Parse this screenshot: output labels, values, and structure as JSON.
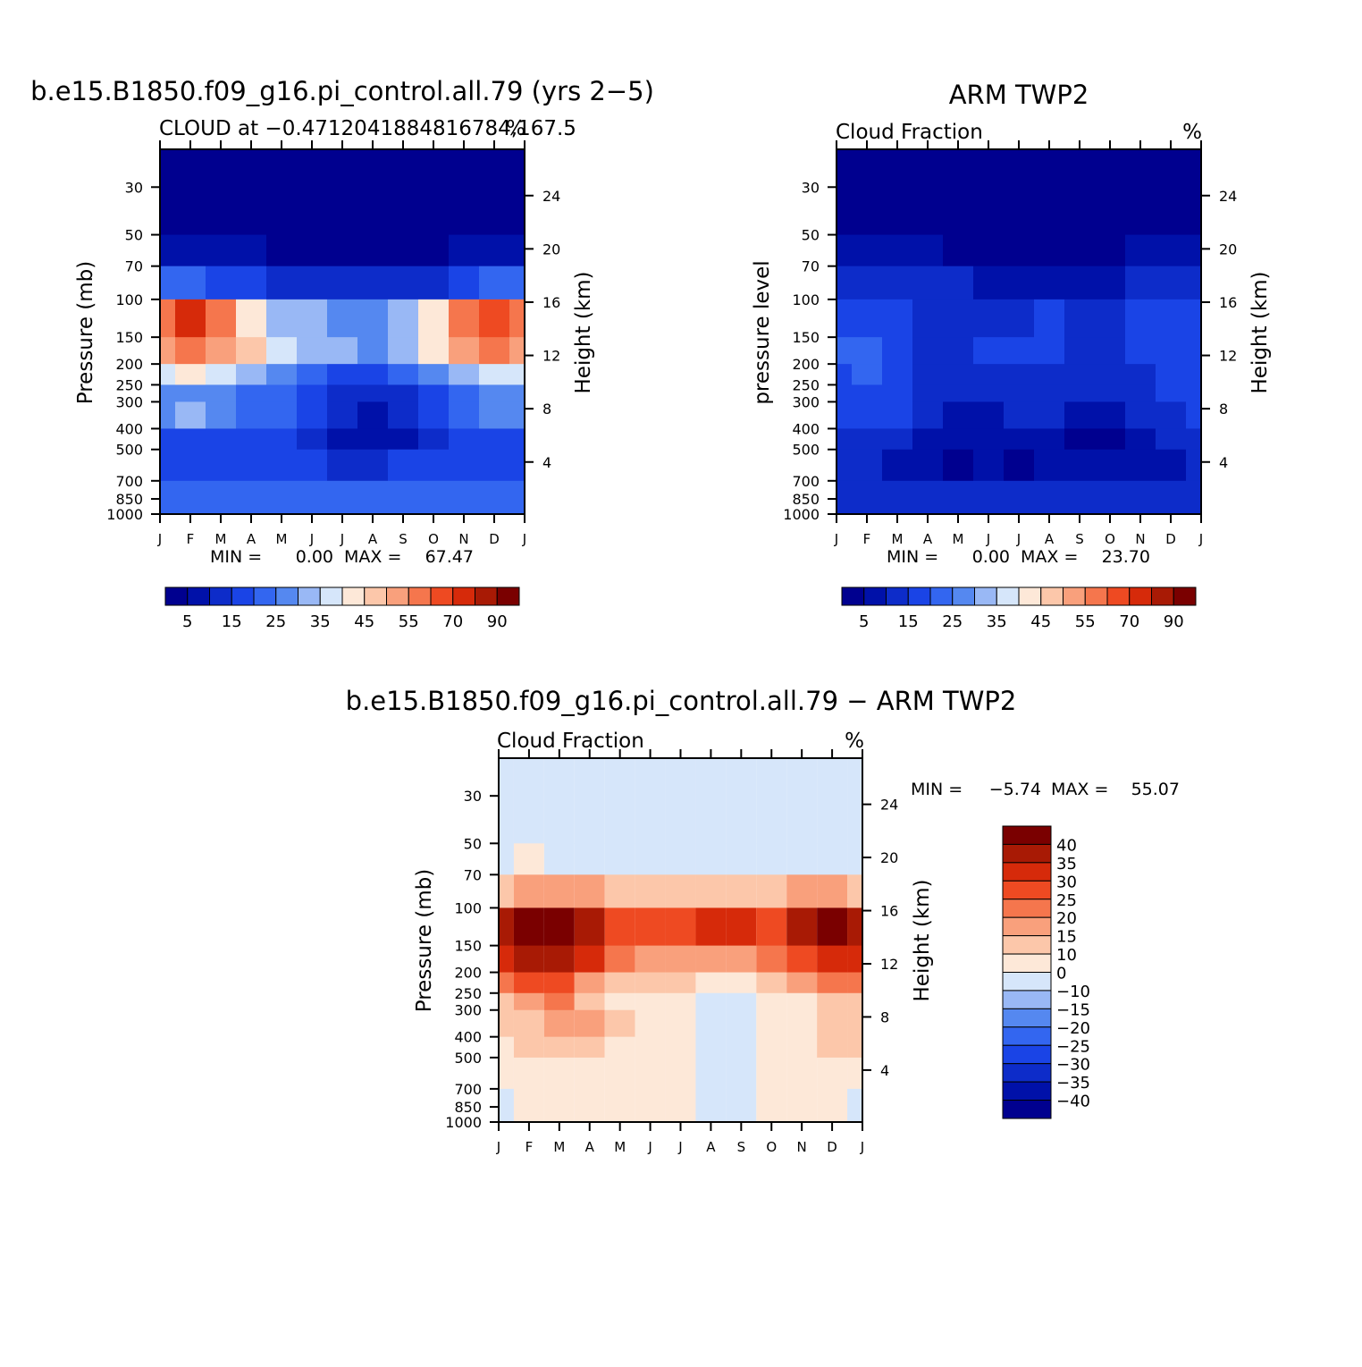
{
  "palette": {
    "sequential": [
      "#00008f",
      "#0011a9",
      "#0d2cc9",
      "#1a44e6",
      "#3366f0",
      "#5588f0",
      "#99b8f5",
      "#d6e6fa",
      "#fde8d8",
      "#fcc7aa",
      "#f9a07c",
      "#f5764d",
      "#ee4a22",
      "#d62a0a",
      "#a81a05",
      "#7a0000"
    ],
    "diverging": [
      "#7a0000",
      "#a81a05",
      "#d62a0a",
      "#ee4a22",
      "#f5764d",
      "#f9a07c",
      "#fcc7aa",
      "#fde8d8",
      "#d6e6fa",
      "#99b8f5",
      "#5588f0",
      "#3366f0",
      "#1a44e6",
      "#0d2cc9",
      "#0011a9",
      "#00008f"
    ]
  },
  "chart_data": [
    {
      "type": "heatmap",
      "title": "b.e15.B1850.f09_g16.pi_control.all.79 (yrs 2−5)",
      "subtitle_left": "CLOUD at −0.4712041884816784,167.5",
      "subtitle_right": "%",
      "ylabel_left": "Pressure (mb)",
      "ylabel_right": "Height (km)",
      "x_ticks": [
        "J",
        "F",
        "M",
        "A",
        "M",
        "J",
        "J",
        "A",
        "S",
        "O",
        "N",
        "D",
        "J"
      ],
      "pressure_ticks": [
        30,
        50,
        70,
        100,
        150,
        200,
        250,
        300,
        400,
        500,
        700,
        850,
        1000
      ],
      "height_ticks": [
        24,
        20,
        16,
        12,
        8,
        4
      ],
      "levels": [
        100,
        150,
        250,
        350,
        500,
        850
      ],
      "stats": {
        "label": "MIN =",
        "min": "0.00",
        "max_label": "MAX =",
        "max": "67.47"
      },
      "colorbar_labels": [
        "5",
        "15",
        "25",
        "35",
        "45",
        "55",
        "70",
        "90"
      ],
      "values": [
        [
          0,
          0,
          0,
          0,
          0,
          0,
          0,
          0,
          0,
          0,
          0,
          0,
          0
        ],
        [
          1,
          1,
          1,
          1,
          0,
          0,
          0,
          0,
          0,
          0,
          1,
          1,
          1
        ],
        [
          4,
          4,
          3,
          3,
          2,
          2,
          2,
          2,
          2,
          2,
          3,
          4,
          4
        ],
        [
          11,
          13,
          11,
          8,
          6,
          6,
          5,
          5,
          6,
          8,
          11,
          12,
          11
        ],
        [
          10,
          11,
          10,
          9,
          7,
          6,
          6,
          5,
          6,
          8,
          10,
          11,
          10
        ],
        [
          7,
          8,
          7,
          6,
          5,
          4,
          3,
          3,
          4,
          5,
          6,
          7,
          7
        ],
        [
          5,
          5,
          5,
          4,
          4,
          3,
          2,
          2,
          2,
          3,
          4,
          5,
          5
        ],
        [
          5,
          6,
          5,
          4,
          4,
          3,
          2,
          1,
          2,
          3,
          4,
          5,
          5
        ],
        [
          3,
          3,
          3,
          3,
          3,
          2,
          1,
          1,
          1,
          2,
          3,
          3,
          3
        ],
        [
          3,
          3,
          3,
          3,
          3,
          3,
          2,
          2,
          3,
          3,
          3,
          3,
          3
        ],
        [
          4,
          4,
          4,
          4,
          4,
          4,
          4,
          4,
          4,
          4,
          4,
          4,
          4
        ]
      ]
    },
    {
      "type": "heatmap",
      "title": "ARM TWP2",
      "subtitle_left": "Cloud Fraction",
      "subtitle_right": "%",
      "ylabel_left": "pressure level",
      "ylabel_right": "Height (km)",
      "x_ticks": [
        "J",
        "F",
        "M",
        "A",
        "M",
        "J",
        "J",
        "A",
        "S",
        "O",
        "N",
        "D",
        "J"
      ],
      "pressure_ticks": [
        30,
        50,
        70,
        100,
        150,
        200,
        250,
        300,
        400,
        500,
        700,
        850,
        1000
      ],
      "height_ticks": [
        24,
        20,
        16,
        12,
        8,
        4
      ],
      "levels": [
        100,
        150,
        250,
        350,
        500,
        850
      ],
      "stats": {
        "label": "MIN =",
        "min": "0.00",
        "max_label": "MAX =",
        "max": "23.70"
      },
      "colorbar_labels": [
        "5",
        "15",
        "25",
        "35",
        "45",
        "55",
        "70",
        "90"
      ],
      "values": [
        [
          0,
          0,
          0,
          0,
          0,
          0,
          0,
          0,
          0,
          0,
          0,
          0,
          0
        ],
        [
          1,
          1,
          1,
          1,
          0,
          0,
          0,
          0,
          0,
          0,
          1,
          1,
          1
        ],
        [
          2,
          2,
          2,
          2,
          2,
          1,
          1,
          1,
          1,
          1,
          2,
          2,
          2
        ],
        [
          3,
          3,
          3,
          2,
          2,
          2,
          2,
          3,
          2,
          2,
          3,
          3,
          3
        ],
        [
          4,
          4,
          3,
          2,
          2,
          3,
          3,
          3,
          2,
          2,
          3,
          3,
          3
        ],
        [
          3,
          4,
          3,
          2,
          2,
          2,
          2,
          2,
          2,
          2,
          2,
          3,
          3
        ],
        [
          3,
          3,
          3,
          2,
          2,
          2,
          2,
          2,
          2,
          2,
          2,
          3,
          3
        ],
        [
          3,
          3,
          3,
          2,
          1,
          1,
          2,
          2,
          1,
          1,
          2,
          2,
          3
        ],
        [
          2,
          2,
          2,
          1,
          1,
          1,
          1,
          1,
          0,
          0,
          1,
          2,
          2
        ],
        [
          2,
          2,
          1,
          1,
          0,
          1,
          0,
          1,
          1,
          1,
          1,
          1,
          2
        ],
        [
          2,
          2,
          2,
          2,
          2,
          2,
          2,
          2,
          2,
          2,
          2,
          2,
          2
        ]
      ]
    },
    {
      "type": "heatmap",
      "title": "b.e15.B1850.f09_g16.pi_control.all.79 − ARM TWP2",
      "subtitle_left": "Cloud Fraction",
      "subtitle_right": "%",
      "ylabel_left": "Pressure (mb)",
      "ylabel_right": "Height (km)",
      "x_ticks": [
        "J",
        "F",
        "M",
        "A",
        "M",
        "J",
        "J",
        "A",
        "S",
        "O",
        "N",
        "D",
        "J"
      ],
      "pressure_ticks": [
        30,
        50,
        70,
        100,
        150,
        200,
        250,
        300,
        400,
        500,
        700,
        850,
        1000
      ],
      "height_ticks": [
        24,
        20,
        16,
        12,
        8,
        4
      ],
      "levels": [
        100,
        150,
        250,
        350,
        500,
        850
      ],
      "stats": {
        "label": "MIN =",
        "min": "−5.74",
        "max_label": "MAX =",
        "max": "55.07"
      },
      "colorbar_labels": [
        "40",
        "35",
        "30",
        "25",
        "20",
        "15",
        "10",
        "0",
        "−10",
        "−15",
        "−20",
        "−25",
        "−30",
        "−35",
        "−40"
      ],
      "values": [
        [
          8,
          8,
          8,
          8,
          8,
          8,
          8,
          8,
          8,
          8,
          8,
          8,
          8
        ],
        [
          8,
          7,
          8,
          8,
          8,
          8,
          8,
          8,
          8,
          8,
          8,
          8,
          8
        ],
        [
          6,
          5,
          5,
          5,
          6,
          6,
          6,
          6,
          6,
          6,
          5,
          5,
          6
        ],
        [
          1,
          0,
          0,
          1,
          3,
          3,
          3,
          2,
          2,
          3,
          1,
          0,
          1
        ],
        [
          2,
          1,
          1,
          2,
          4,
          5,
          5,
          5,
          5,
          4,
          3,
          2,
          2
        ],
        [
          4,
          3,
          3,
          5,
          6,
          6,
          6,
          7,
          7,
          6,
          5,
          4,
          4
        ],
        [
          6,
          5,
          4,
          6,
          7,
          7,
          7,
          8,
          8,
          7,
          7,
          6,
          6
        ],
        [
          6,
          6,
          5,
          5,
          6,
          7,
          7,
          8,
          8,
          7,
          7,
          6,
          6
        ],
        [
          7,
          6,
          6,
          6,
          7,
          7,
          7,
          8,
          8,
          7,
          7,
          6,
          6
        ],
        [
          7,
          7,
          7,
          7,
          7,
          7,
          7,
          8,
          8,
          7,
          7,
          7,
          7
        ],
        [
          8,
          7,
          7,
          7,
          7,
          7,
          7,
          8,
          8,
          7,
          7,
          7,
          8
        ]
      ]
    }
  ]
}
